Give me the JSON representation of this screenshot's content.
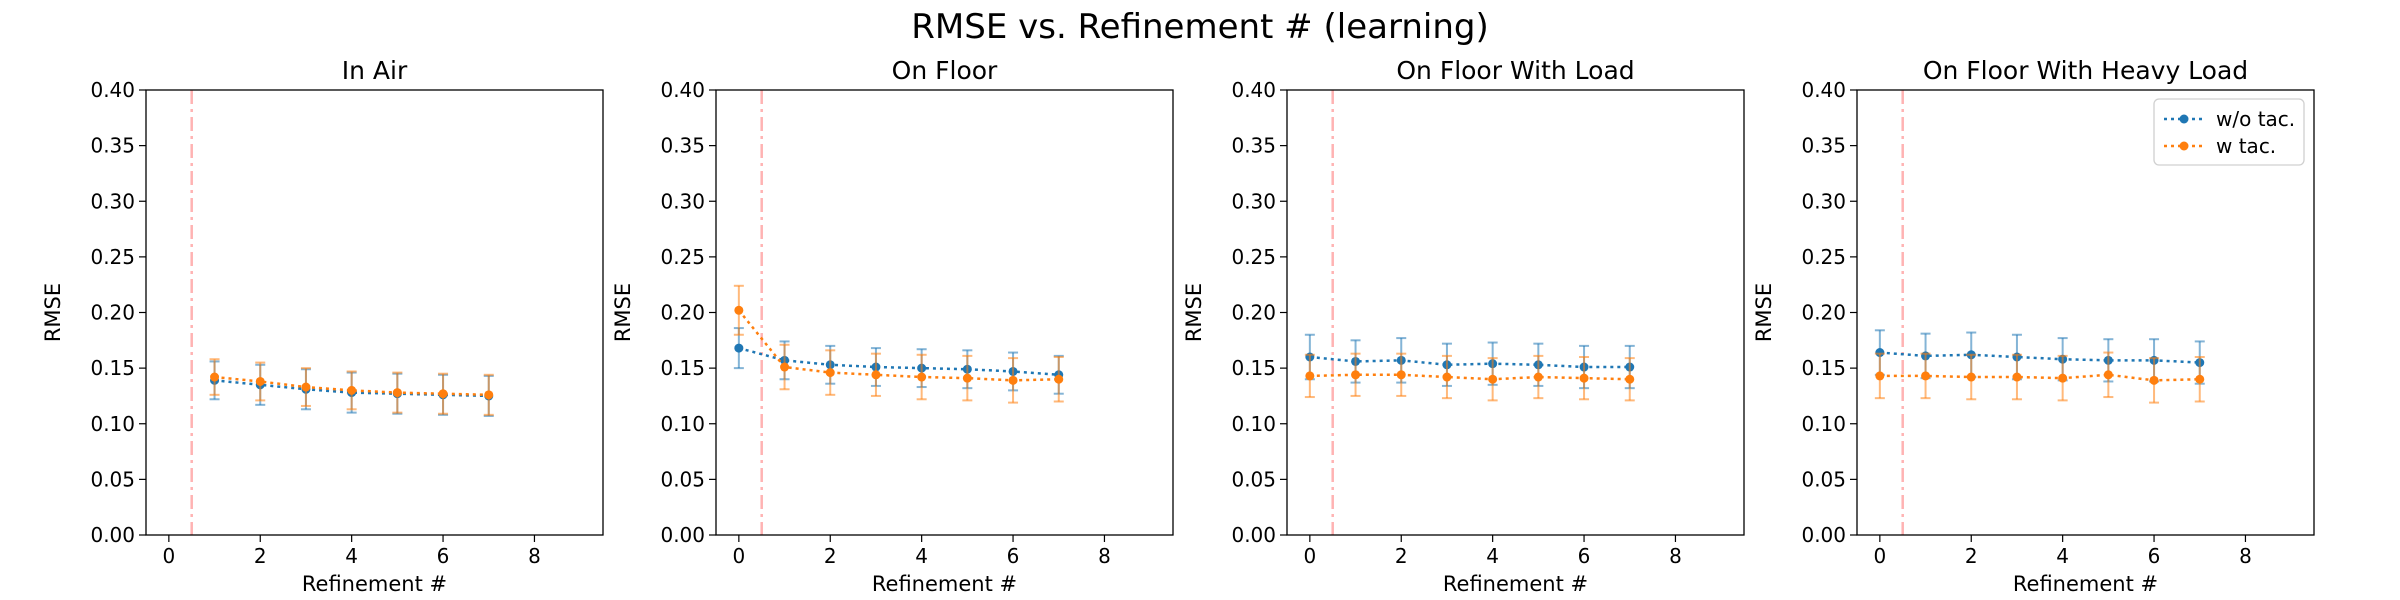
{
  "figure": {
    "title": "RMSE vs. Refinement # (learning)"
  },
  "colors": {
    "without_tactile": "#1f77b4",
    "with_tactile": "#ff7f0e",
    "marker_line": "#ffb3b3"
  },
  "chart_data": [
    {
      "type": "line",
      "title": "In Air",
      "xlabel": "Refinement #",
      "ylabel": "RMSE",
      "xlim": [
        -0.5,
        9.5
      ],
      "ylim": [
        0,
        0.4
      ],
      "xticks": [
        "0",
        "2",
        "4",
        "6",
        "8"
      ],
      "yticks": [
        "0.00",
        "0.05",
        "0.10",
        "0.15",
        "0.20",
        "0.25",
        "0.30",
        "0.35",
        "0.40"
      ],
      "vline_x": 0.5,
      "grid": false,
      "series": [
        {
          "x": [
            1,
            2,
            3,
            4,
            5,
            6,
            7
          ],
          "values": [
            0.139,
            0.135,
            0.131,
            0.128,
            0.127,
            0.126,
            0.125
          ],
          "errors": [
            0.017,
            0.018,
            0.018,
            0.018,
            0.018,
            0.018,
            0.018
          ]
        },
        {
          "x": [
            1,
            2,
            3,
            4,
            5,
            6,
            7
          ],
          "values": [
            0.142,
            0.138,
            0.133,
            0.13,
            0.128,
            0.127,
            0.126
          ],
          "errors": [
            0.016,
            0.017,
            0.017,
            0.017,
            0.018,
            0.018,
            0.018
          ]
        }
      ]
    },
    {
      "type": "line",
      "title": "On Floor",
      "xlabel": "Refinement #",
      "ylabel": "RMSE",
      "xlim": [
        -0.5,
        9.5
      ],
      "ylim": [
        0,
        0.4
      ],
      "xticks": [
        "0",
        "2",
        "4",
        "6",
        "8"
      ],
      "yticks": [
        "0.00",
        "0.05",
        "0.10",
        "0.15",
        "0.20",
        "0.25",
        "0.30",
        "0.35",
        "0.40"
      ],
      "vline_x": 0.5,
      "grid": false,
      "series": [
        {
          "x": [
            0,
            1,
            2,
            3,
            4,
            5,
            6,
            7
          ],
          "values": [
            0.168,
            0.157,
            0.153,
            0.151,
            0.15,
            0.149,
            0.147,
            0.144
          ],
          "errors": [
            0.018,
            0.017,
            0.017,
            0.017,
            0.017,
            0.017,
            0.017,
            0.017
          ]
        },
        {
          "x": [
            0,
            1,
            2,
            3,
            4,
            5,
            6,
            7
          ],
          "values": [
            0.202,
            0.151,
            0.146,
            0.144,
            0.142,
            0.141,
            0.139,
            0.14
          ],
          "errors": [
            0.022,
            0.02,
            0.02,
            0.019,
            0.02,
            0.02,
            0.02,
            0.02
          ]
        }
      ]
    },
    {
      "type": "line",
      "title": "On Floor With Load",
      "xlabel": "Refinement #",
      "ylabel": "RMSE",
      "xlim": [
        -0.5,
        9.5
      ],
      "ylim": [
        0,
        0.4
      ],
      "xticks": [
        "0",
        "2",
        "4",
        "6",
        "8"
      ],
      "yticks": [
        "0.00",
        "0.05",
        "0.10",
        "0.15",
        "0.20",
        "0.25",
        "0.30",
        "0.35",
        "0.40"
      ],
      "vline_x": 0.5,
      "grid": false,
      "series": [
        {
          "x": [
            0,
            1,
            2,
            3,
            4,
            5,
            6,
            7
          ],
          "values": [
            0.16,
            0.156,
            0.157,
            0.153,
            0.154,
            0.153,
            0.151,
            0.151
          ],
          "errors": [
            0.02,
            0.019,
            0.02,
            0.019,
            0.019,
            0.019,
            0.019,
            0.019
          ]
        },
        {
          "x": [
            0,
            1,
            2,
            3,
            4,
            5,
            6,
            7
          ],
          "values": [
            0.143,
            0.144,
            0.144,
            0.142,
            0.14,
            0.142,
            0.141,
            0.14
          ],
          "errors": [
            0.019,
            0.019,
            0.019,
            0.019,
            0.019,
            0.019,
            0.019,
            0.019
          ]
        }
      ]
    },
    {
      "type": "line",
      "title": "On Floor With Heavy Load",
      "xlabel": "Refinement #",
      "ylabel": "RMSE",
      "xlim": [
        -0.5,
        9.5
      ],
      "ylim": [
        0,
        0.4
      ],
      "xticks": [
        "0",
        "2",
        "4",
        "6",
        "8"
      ],
      "yticks": [
        "0.00",
        "0.05",
        "0.10",
        "0.15",
        "0.20",
        "0.25",
        "0.30",
        "0.35",
        "0.40"
      ],
      "vline_x": 0.5,
      "grid": false,
      "legend_position": "top-right",
      "series": [
        {
          "name": "w/o tac.",
          "x": [
            0,
            1,
            2,
            3,
            4,
            5,
            6,
            7
          ],
          "values": [
            0.164,
            0.161,
            0.162,
            0.16,
            0.158,
            0.157,
            0.157,
            0.155
          ],
          "errors": [
            0.02,
            0.02,
            0.02,
            0.02,
            0.019,
            0.019,
            0.019,
            0.019
          ]
        },
        {
          "name": "w tac.",
          "x": [
            0,
            1,
            2,
            3,
            4,
            5,
            6,
            7
          ],
          "values": [
            0.143,
            0.143,
            0.142,
            0.142,
            0.141,
            0.144,
            0.139,
            0.14
          ],
          "errors": [
            0.02,
            0.02,
            0.02,
            0.02,
            0.02,
            0.02,
            0.02,
            0.02
          ]
        }
      ]
    }
  ]
}
